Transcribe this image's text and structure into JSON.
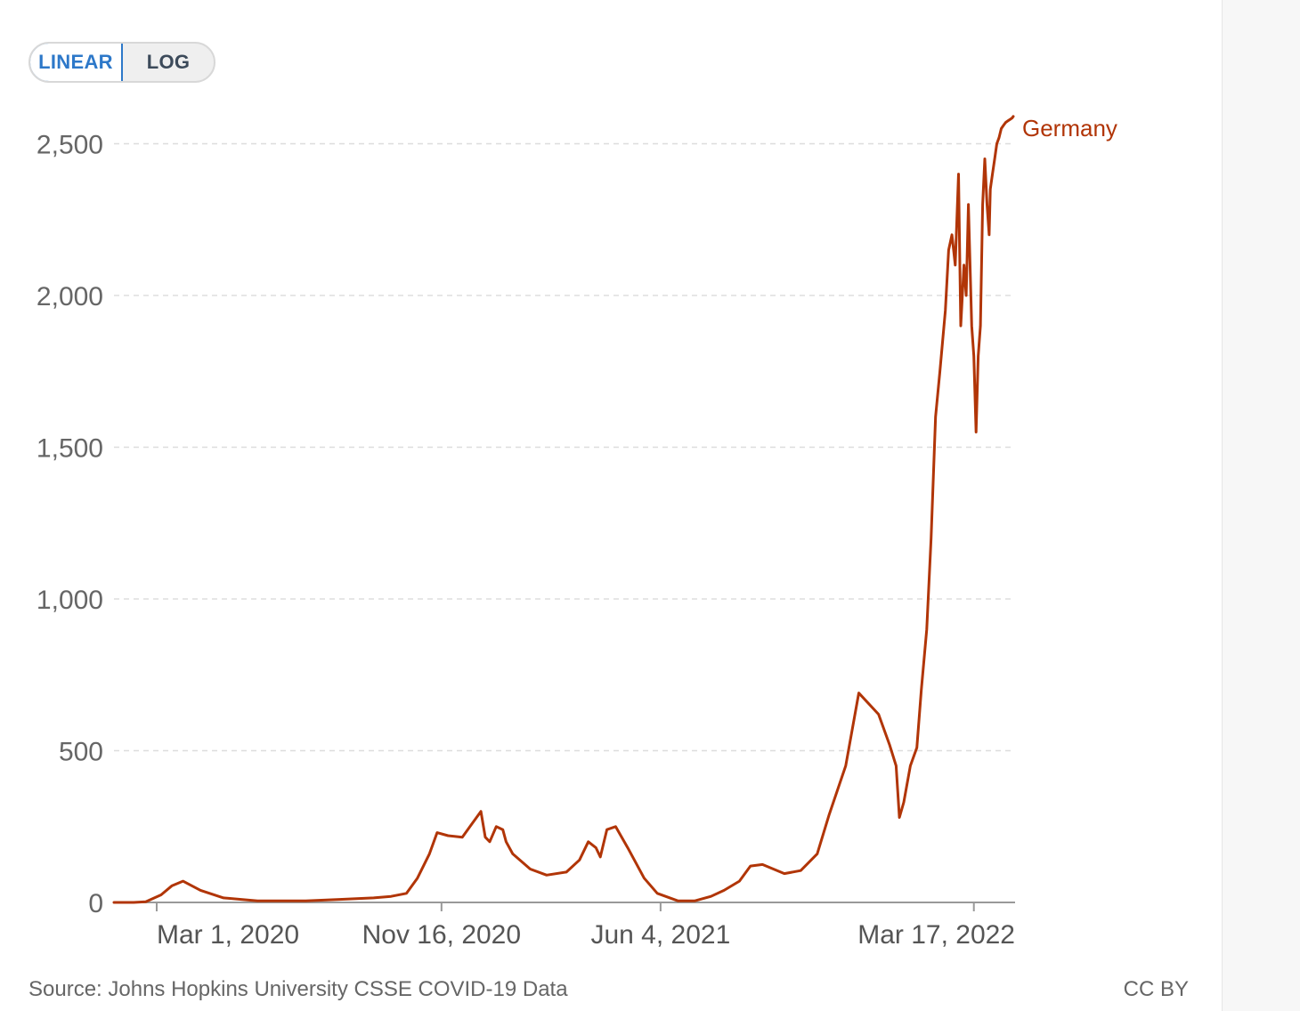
{
  "controls": {
    "linear_label": "LINEAR",
    "log_label": "LOG",
    "active": "linear"
  },
  "footer": {
    "source": "Source: Johns Hopkins University CSSE COVID-19 Data",
    "license": "CC BY"
  },
  "colors": {
    "series": "#b13507",
    "grid": "#dddddd",
    "axis_text": "#666666",
    "accent": "#2d78c9"
  },
  "chart_data": {
    "type": "line",
    "title": "",
    "xlabel": "",
    "ylabel": "",
    "ylim": [
      0,
      2600
    ],
    "xlim": [
      "2020-01-22",
      "2022-04-22"
    ],
    "grid": true,
    "yticks": [
      {
        "value": 0,
        "label": "0"
      },
      {
        "value": 500,
        "label": "500"
      },
      {
        "value": 1000,
        "label": "1,000"
      },
      {
        "value": 1500,
        "label": "1,500"
      },
      {
        "value": 2000,
        "label": "2,000"
      },
      {
        "value": 2500,
        "label": "2,500"
      }
    ],
    "xticks": [
      {
        "date": "2020-03-01",
        "label": "Mar 1, 2020"
      },
      {
        "date": "2020-11-16",
        "label": "Nov 16, 2020"
      },
      {
        "date": "2021-06-04",
        "label": "Jun 4, 2021"
      },
      {
        "date": "2022-03-17",
        "label": "Mar 17, 2022"
      }
    ],
    "series": [
      {
        "name": "Germany",
        "x": [
          "2020-01-22",
          "2020-02-09",
          "2020-02-20",
          "2020-03-05",
          "2020-03-15",
          "2020-03-25",
          "2020-04-10",
          "2020-05-01",
          "2020-06-01",
          "2020-07-15",
          "2020-08-15",
          "2020-09-15",
          "2020-10-01",
          "2020-10-15",
          "2020-10-25",
          "2020-11-05",
          "2020-11-12",
          "2020-11-22",
          "2020-12-05",
          "2020-12-12",
          "2020-12-22",
          "2020-12-26",
          "2020-12-30",
          "2021-01-05",
          "2021-01-11",
          "2021-01-14",
          "2021-01-20",
          "2021-02-05",
          "2021-02-20",
          "2021-03-10",
          "2021-03-22",
          "2021-03-30",
          "2021-04-06",
          "2021-04-10",
          "2021-04-16",
          "2021-04-24",
          "2021-05-05",
          "2021-05-20",
          "2021-06-01",
          "2021-06-20",
          "2021-07-05",
          "2021-07-20",
          "2021-08-01",
          "2021-08-15",
          "2021-08-25",
          "2021-09-05",
          "2021-09-15",
          "2021-09-25",
          "2021-10-10",
          "2021-10-25",
          "2021-11-05",
          "2021-11-20",
          "2021-12-02",
          "2021-12-20",
          "2021-12-30",
          "2022-01-05",
          "2022-01-08",
          "2022-01-12",
          "2022-01-18",
          "2022-01-24",
          "2022-01-28",
          "2022-02-02",
          "2022-02-06",
          "2022-02-10",
          "2022-02-14",
          "2022-02-19",
          "2022-02-22",
          "2022-02-25",
          "2022-02-28",
          "2022-03-03",
          "2022-03-05",
          "2022-03-08",
          "2022-03-10",
          "2022-03-12",
          "2022-03-15",
          "2022-03-17",
          "2022-03-19",
          "2022-03-21",
          "2022-03-23",
          "2022-03-25",
          "2022-03-27",
          "2022-03-29",
          "2022-03-31",
          "2022-04-01",
          "2022-04-03",
          "2022-04-05",
          "2022-04-07",
          "2022-04-09",
          "2022-04-11",
          "2022-04-13",
          "2022-04-15",
          "2022-04-17",
          "2022-04-19",
          "2022-04-21",
          "2022-04-22"
        ],
        "y": [
          0,
          0,
          2,
          25,
          55,
          70,
          40,
          15,
          5,
          5,
          10,
          15,
          20,
          30,
          80,
          160,
          230,
          220,
          215,
          250,
          300,
          215,
          200,
          250,
          240,
          200,
          160,
          110,
          90,
          100,
          140,
          200,
          180,
          150,
          240,
          250,
          180,
          80,
          30,
          5,
          5,
          20,
          40,
          70,
          120,
          125,
          110,
          95,
          105,
          160,
          290,
          450,
          690,
          620,
          520,
          450,
          280,
          330,
          450,
          510,
          700,
          900,
          1200,
          1600,
          1750,
          1950,
          2150,
          2200,
          2100,
          2400,
          1900,
          2100,
          2000,
          2300,
          1900,
          1800,
          1550,
          1800,
          1900,
          2300,
          2450,
          2300,
          2200,
          2350,
          2400,
          2450,
          2500,
          2520,
          2550,
          2560,
          2570,
          2575,
          2580,
          2585,
          2590
        ]
      }
    ]
  }
}
